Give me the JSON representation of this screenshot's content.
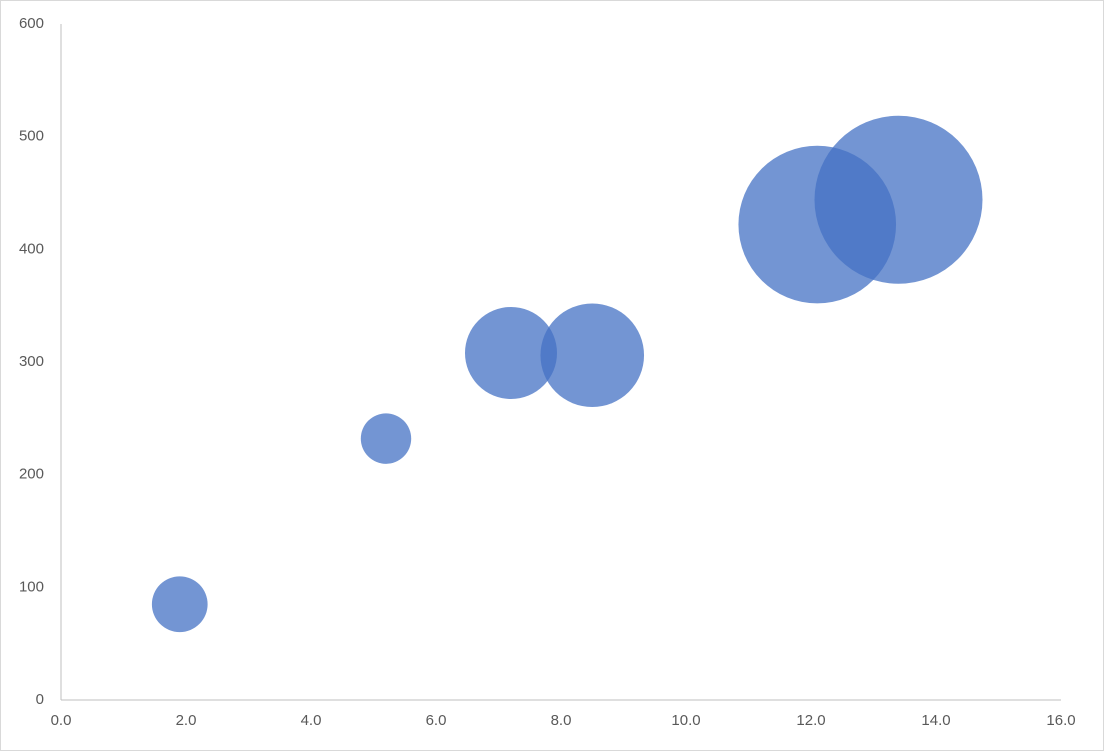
{
  "chart_data": {
    "type": "bubble",
    "series": [
      {
        "color": "#4472c4",
        "x": [
          1.9,
          5.2,
          7.2,
          8.5,
          12.1,
          13.4
        ],
        "values": [
          85,
          232,
          308,
          306,
          422,
          444
        ],
        "sizes": [
          11,
          9,
          30,
          38,
          88,
          100
        ]
      }
    ],
    "xlim": [
      0,
      16
    ],
    "xticks": [
      {
        "value": 0,
        "label": "0.0"
      },
      {
        "value": 2,
        "label": "2.0"
      },
      {
        "value": 4,
        "label": "4.0"
      },
      {
        "value": 6,
        "label": "6.0"
      },
      {
        "value": 8,
        "label": "8.0"
      },
      {
        "value": 10,
        "label": "10.0"
      },
      {
        "value": 12,
        "label": "12.0"
      },
      {
        "value": 14,
        "label": "14.0"
      },
      {
        "value": 16,
        "label": "16.0"
      }
    ],
    "ylim": [
      0,
      600
    ],
    "yticks": [
      0,
      100,
      200,
      300,
      400,
      500,
      600
    ],
    "grid": false
  }
}
